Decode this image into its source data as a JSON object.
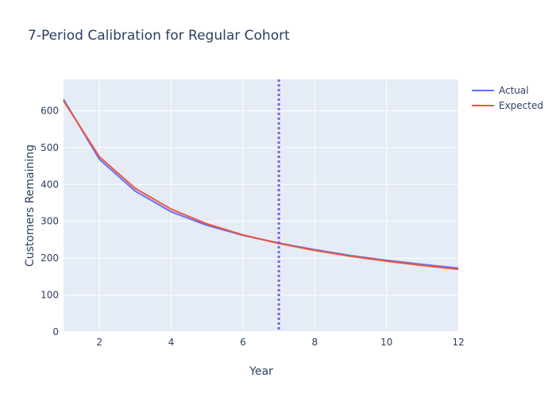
{
  "chart_data": {
    "type": "line",
    "title": "7-Period Calibration for Regular Cohort",
    "xlabel": "Year",
    "ylabel": "Customers Remaining",
    "xlim": [
      1,
      12
    ],
    "ylim": [
      0,
      685
    ],
    "x_ticks": [
      2,
      4,
      6,
      8,
      10,
      12
    ],
    "y_ticks": [
      0,
      100,
      200,
      300,
      400,
      500,
      600
    ],
    "x": [
      1,
      2,
      3,
      4,
      5,
      6,
      7,
      8,
      9,
      10,
      11,
      12
    ],
    "series": [
      {
        "name": "Actual",
        "color": "#636efa",
        "values": [
          631,
          468,
          382,
          326,
          289,
          262,
          241,
          223,
          207,
          194,
          183,
          173
        ]
      },
      {
        "name": "Expected",
        "color": "#ef553b",
        "values": [
          627,
          475,
          389,
          333,
          293,
          263,
          240,
          221,
          205,
          192,
          180,
          170
        ]
      }
    ],
    "calibration_line": {
      "x": 7,
      "color": "#7d5fd6",
      "style": "dotted"
    },
    "grid": true,
    "legend_position": "top-right"
  }
}
